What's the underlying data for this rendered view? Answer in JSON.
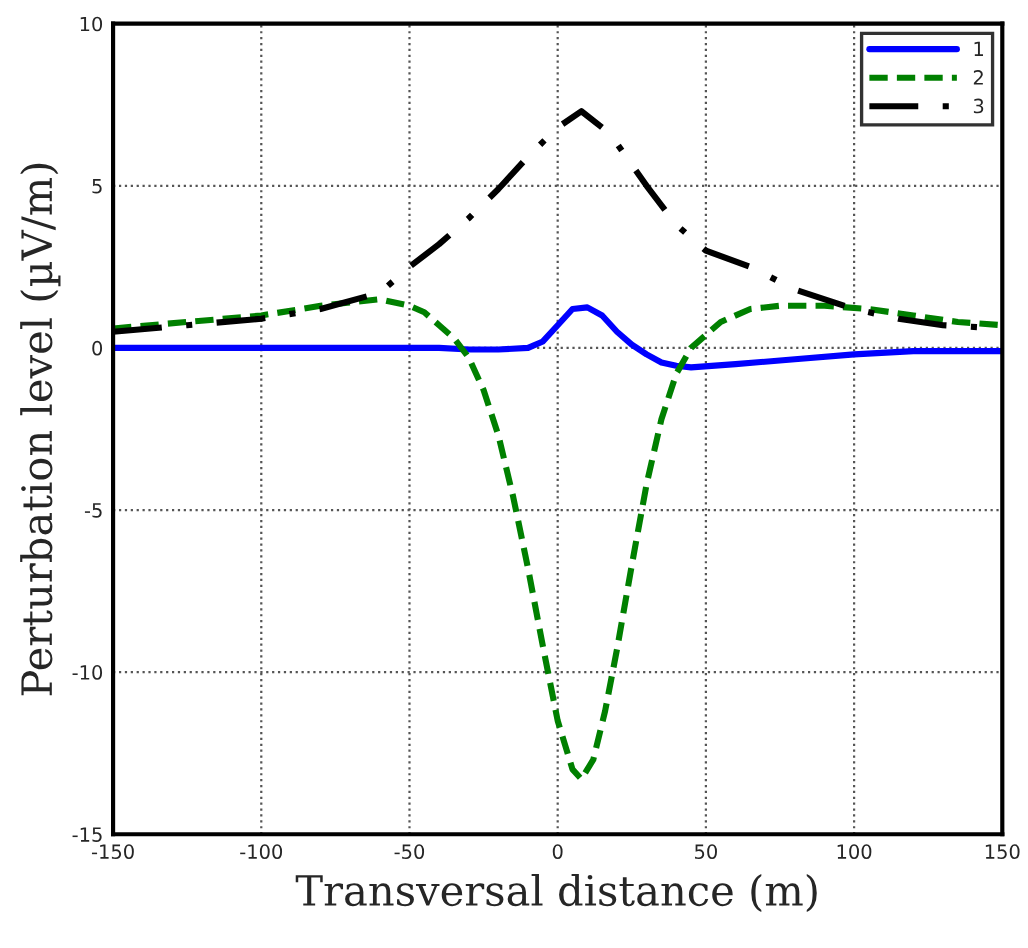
{
  "chart_data": {
    "type": "line",
    "xlabel": "Transversal distance (m)",
    "ylabel": "Perturbation level (µV/m)",
    "xlim": [
      -150,
      150
    ],
    "xticks": [
      -150,
      -100,
      -50,
      0,
      50,
      100,
      150
    ],
    "ylim": [
      -15,
      10
    ],
    "yticks": [
      -15,
      -10,
      -5,
      0,
      5,
      10
    ],
    "grid": true,
    "legend": "top right",
    "series": [
      {
        "name": "1",
        "color": "#0000ff",
        "line_style": "solid",
        "x": [
          -150,
          -100,
          -60,
          -40,
          -30,
          -20,
          -10,
          -5,
          0,
          5,
          10,
          15,
          20,
          25,
          30,
          35,
          40,
          45,
          60,
          80,
          100,
          120,
          150
        ],
        "values": [
          0,
          0,
          0,
          0,
          -0.05,
          -0.05,
          0,
          0.2,
          0.7,
          1.2,
          1.25,
          1.0,
          0.5,
          0.1,
          -0.2,
          -0.45,
          -0.55,
          -0.6,
          -0.5,
          -0.35,
          -0.2,
          -0.1,
          -0.1
        ]
      },
      {
        "name": "2",
        "color": "#008000",
        "line_style": "dashed",
        "x": [
          -150,
          -125,
          -100,
          -80,
          -60,
          -50,
          -45,
          -40,
          -35,
          -30,
          -25,
          -20,
          -15,
          -10,
          -5,
          0,
          5,
          8,
          12,
          16,
          20,
          25,
          30,
          35,
          40,
          45,
          55,
          65,
          75,
          90,
          105,
          120,
          135,
          150
        ],
        "values": [
          0.6,
          0.8,
          1.0,
          1.3,
          1.5,
          1.3,
          1.1,
          0.7,
          0.3,
          -0.3,
          -1.3,
          -2.7,
          -4.6,
          -6.8,
          -9.2,
          -11.5,
          -13.0,
          -13.3,
          -12.7,
          -11.2,
          -9.3,
          -6.7,
          -4.2,
          -2.2,
          -0.8,
          0.0,
          0.8,
          1.2,
          1.3,
          1.3,
          1.2,
          1.0,
          0.8,
          0.7
        ]
      },
      {
        "name": "3",
        "color": "#000000",
        "line_style": "dashdot",
        "x": [
          -150,
          -125,
          -100,
          -80,
          -60,
          -50,
          -40,
          -30,
          -20,
          -10,
          0,
          8,
          15,
          20,
          30,
          40,
          50,
          65,
          80,
          100,
          115,
          130,
          150
        ],
        "values": [
          0.5,
          0.7,
          0.9,
          1.2,
          1.7,
          2.5,
          3.2,
          4.0,
          4.9,
          5.9,
          6.8,
          7.3,
          6.8,
          6.3,
          5.0,
          3.8,
          3.0,
          2.5,
          1.8,
          1.2,
          0.9,
          0.7,
          0.6
        ]
      }
    ]
  }
}
